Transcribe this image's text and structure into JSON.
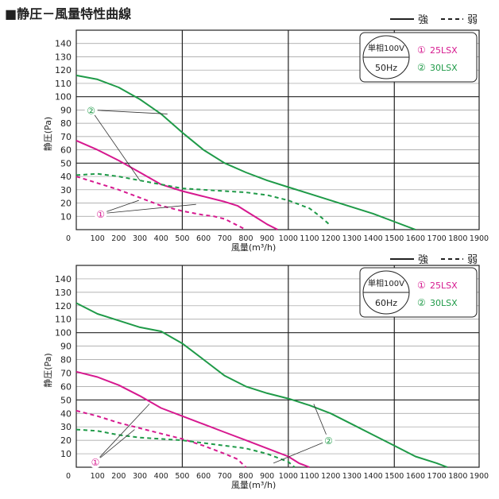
{
  "title": "■静圧－風量特性曲線",
  "legend": {
    "strong_label": "強",
    "weak_label": "弱"
  },
  "colors": {
    "pink": "#d6198f",
    "green": "#1f9a48",
    "grid": "#222222",
    "minor_grid": "#9a9a9a"
  },
  "chart_data": [
    {
      "type": "line",
      "xlabel": "風量(m³/h)",
      "ylabel": "静圧(Pa)",
      "xlim": [
        0,
        1900
      ],
      "ylim": [
        0,
        150
      ],
      "x_ticks": [
        0,
        100,
        200,
        300,
        400,
        500,
        600,
        700,
        800,
        900,
        1000,
        1100,
        1200,
        1300,
        1400,
        1500,
        1600,
        1700,
        1800,
        1900
      ],
      "y_ticks": [
        10,
        20,
        30,
        40,
        50,
        60,
        70,
        80,
        90,
        100,
        110,
        120,
        130,
        140
      ],
      "condition_box": {
        "line1": "単相100V",
        "line2": "50Hz"
      },
      "series": [
        {
          "name": "25LSX",
          "marker": "①",
          "color": "#d6198f",
          "style": "solid",
          "x": [
            0,
            100,
            200,
            300,
            400,
            500,
            600,
            700,
            760,
            800,
            850,
            900,
            950
          ],
          "y": [
            67,
            60,
            52,
            43,
            34,
            29,
            25,
            21,
            18,
            14,
            9,
            4,
            0
          ]
        },
        {
          "name": "25LSX",
          "marker": "①",
          "color": "#d6198f",
          "style": "dashed",
          "x": [
            0,
            100,
            200,
            300,
            400,
            500,
            600,
            650,
            700,
            750,
            800
          ],
          "y": [
            40,
            35,
            30,
            24,
            18,
            14,
            11,
            10,
            8,
            4,
            0
          ]
        },
        {
          "name": "30LSX",
          "marker": "②",
          "color": "#1f9a48",
          "style": "solid",
          "x": [
            0,
            100,
            200,
            300,
            400,
            500,
            600,
            700,
            800,
            900,
            1000,
            1100,
            1200,
            1300,
            1400,
            1500,
            1600
          ],
          "y": [
            116,
            113,
            107,
            98,
            87,
            73,
            60,
            50,
            43,
            37,
            32,
            27,
            22,
            17,
            12,
            6,
            0
          ]
        },
        {
          "name": "30LSX",
          "marker": "②",
          "color": "#1f9a48",
          "style": "dashed",
          "x": [
            0,
            100,
            200,
            300,
            400,
            500,
            600,
            700,
            800,
            900,
            1000,
            1100,
            1150,
            1200
          ],
          "y": [
            41,
            42,
            40,
            37,
            34,
            31,
            30,
            29,
            28,
            26,
            22,
            16,
            10,
            3
          ]
        }
      ],
      "markers": [
        {
          "text": "①",
          "label_at": [
            115,
            12
          ],
          "targets": [
            [
              295,
              22
            ],
            [
              565,
              19
            ]
          ]
        },
        {
          "text": "②",
          "label_at": [
            70,
            90
          ],
          "targets": [
            [
              430,
              87
            ],
            [
              300,
              37
            ]
          ]
        }
      ]
    },
    {
      "type": "line",
      "xlabel": "風量(m³/h)",
      "ylabel": "静圧(Pa)",
      "xlim": [
        0,
        1900
      ],
      "ylim": [
        0,
        150
      ],
      "x_ticks": [
        0,
        100,
        200,
        300,
        400,
        500,
        600,
        700,
        800,
        900,
        1000,
        1100,
        1200,
        1300,
        1400,
        1500,
        1600,
        1700,
        1800,
        1900
      ],
      "y_ticks": [
        10,
        20,
        30,
        40,
        50,
        60,
        70,
        80,
        90,
        100,
        110,
        120,
        130,
        140
      ],
      "condition_box": {
        "line1": "単相100V",
        "line2": "60Hz"
      },
      "series": [
        {
          "name": "25LSX",
          "marker": "①",
          "color": "#d6198f",
          "style": "solid",
          "x": [
            0,
            100,
            200,
            300,
            400,
            500,
            600,
            700,
            800,
            900,
            1000,
            1050,
            1100
          ],
          "y": [
            71,
            67,
            61,
            53,
            44,
            38,
            32,
            26,
            20,
            14,
            8,
            3,
            0
          ]
        },
        {
          "name": "25LSX",
          "marker": "①",
          "color": "#d6198f",
          "style": "dashed",
          "x": [
            0,
            100,
            200,
            300,
            400,
            500,
            600,
            700,
            760,
            800
          ],
          "y": [
            42,
            38,
            33,
            29,
            25,
            21,
            16,
            10,
            6,
            0
          ]
        },
        {
          "name": "30LSX",
          "marker": "②",
          "color": "#1f9a48",
          "style": "solid",
          "x": [
            0,
            100,
            200,
            300,
            400,
            500,
            600,
            700,
            800,
            900,
            1000,
            1100,
            1200,
            1300,
            1400,
            1500,
            1600,
            1700,
            1750
          ],
          "y": [
            122,
            114,
            109,
            104,
            101,
            92,
            80,
            68,
            60,
            55,
            51,
            46,
            40,
            32,
            24,
            16,
            8,
            3,
            0
          ]
        },
        {
          "name": "30LSX",
          "marker": "②",
          "color": "#1f9a48",
          "style": "dashed",
          "x": [
            0,
            100,
            200,
            300,
            400,
            500,
            600,
            700,
            800,
            900,
            1000,
            1030
          ],
          "y": [
            28,
            27,
            24,
            22,
            21,
            20,
            18,
            16,
            14,
            10,
            4,
            0
          ]
        }
      ],
      "markers": [
        {
          "text": "①",
          "label_at": [
            90,
            4
          ],
          "targets": [
            [
              345,
              47
            ],
            [
              275,
              28
            ]
          ]
        },
        {
          "text": "②",
          "label_at": [
            1190,
            20
          ],
          "targets": [
            [
              1120,
              47
            ],
            [
              930,
              3
            ]
          ]
        }
      ]
    }
  ]
}
